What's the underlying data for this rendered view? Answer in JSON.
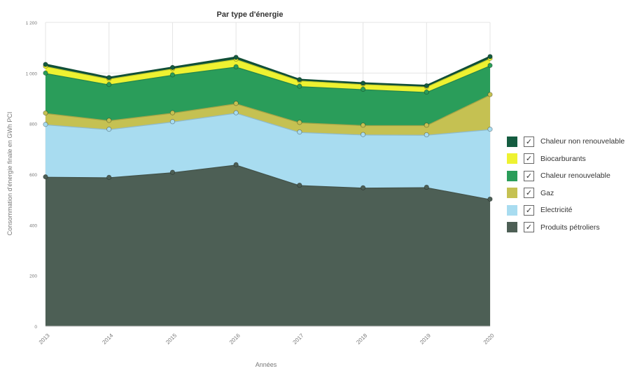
{
  "chart_data": {
    "type": "area",
    "stacked": true,
    "title": "Par type d'énergie",
    "xlabel": "Années",
    "ylabel": "Consommation d'énergie finale en GWh PCI",
    "x": [
      "2013",
      "2014",
      "2015",
      "2016",
      "2017",
      "2018",
      "2019",
      "2020"
    ],
    "ylim": [
      0,
      1200
    ],
    "yticks": [
      "0",
      "200",
      "400",
      "600",
      "800",
      "1 000",
      "1 200"
    ],
    "grid": true,
    "legend_position": "right",
    "series": [
      {
        "name": "Produits pétroliers",
        "color": "#4d5f55",
        "values": [
          590,
          588,
          608,
          638,
          557,
          547,
          549,
          502
        ]
      },
      {
        "name": "Electricité",
        "color": "#a8dcf0",
        "values": [
          207,
          190,
          200,
          205,
          210,
          210,
          207,
          276
        ]
      },
      {
        "name": "Gaz",
        "color": "#c5c152",
        "values": [
          45,
          35,
          35,
          37,
          38,
          37,
          38,
          137
        ]
      },
      {
        "name": "Chaleur renouvelable",
        "color": "#2a9d5a",
        "values": [
          158,
          142,
          150,
          145,
          143,
          142,
          131,
          115
        ]
      },
      {
        "name": "Biocarburants",
        "color": "#eef231",
        "values": [
          27,
          22,
          24,
          30,
          22,
          20,
          21,
          28
        ]
      },
      {
        "name": "Chaleur non renouvelable",
        "color": "#145c40",
        "values": [
          7,
          5,
          5,
          7,
          4,
          4,
          4,
          7
        ]
      }
    ]
  },
  "legend": {
    "check_glyph": "✓",
    "items": [
      {
        "label": "Chaleur non renouvelable",
        "color": "#145c40"
      },
      {
        "label": "Biocarburants",
        "color": "#eef231"
      },
      {
        "label": "Chaleur renouvelable",
        "color": "#2a9d5a"
      },
      {
        "label": "Gaz",
        "color": "#c5c152"
      },
      {
        "label": "Electricité",
        "color": "#a8dcf0"
      },
      {
        "label": "Produits pétroliers",
        "color": "#4d5f55"
      }
    ]
  }
}
